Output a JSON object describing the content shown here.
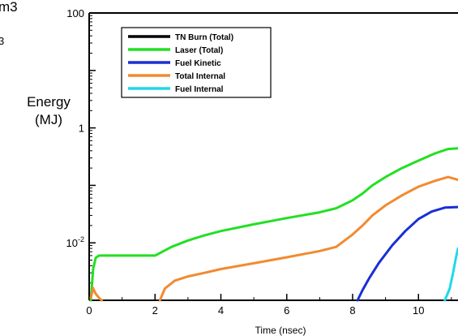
{
  "clipped_text": [
    "m3",
    "3"
  ],
  "chart_data": {
    "type": "line",
    "xlabel": "Time (nsec)",
    "ylabel_lines": [
      "Energy",
      "(MJ)"
    ],
    "y_scale": "log",
    "xlim": [
      0,
      11.2
    ],
    "ylim": [
      0.001,
      100
    ],
    "x_ticks": [
      0,
      2,
      4,
      6,
      8,
      10
    ],
    "x_tick_labels": [
      "0",
      "2",
      "4",
      "6",
      "8",
      "10"
    ],
    "y_tick_labels": [
      {
        "value": 100,
        "base": "100",
        "exp": ""
      },
      {
        "value": 1,
        "base": "1",
        "exp": ""
      },
      {
        "value": 0.01,
        "base": "10",
        "exp": "-2"
      }
    ],
    "legend_placement": "top-left",
    "series": [
      {
        "name": "TN Burn (Total)",
        "color": "#000000",
        "x": [],
        "y": []
      },
      {
        "name": "Laser (Total)",
        "color": "#22e022",
        "x": [
          0.05,
          0.12,
          0.2,
          0.3,
          2.0,
          2.5,
          3.0,
          3.5,
          4.0,
          5.0,
          6.0,
          7.0,
          7.5,
          8.0,
          8.3,
          8.6,
          9.0,
          9.5,
          10.0,
          10.5,
          10.9,
          11.2
        ],
        "y": [
          0.001,
          0.0035,
          0.0055,
          0.006,
          0.006,
          0.0085,
          0.011,
          0.0135,
          0.016,
          0.021,
          0.027,
          0.034,
          0.04,
          0.055,
          0.072,
          0.1,
          0.14,
          0.2,
          0.27,
          0.36,
          0.43,
          0.44
        ]
      },
      {
        "name": "Fuel Kinetic",
        "color": "#1a2fd6",
        "x": [
          8.15,
          8.3,
          8.5,
          8.8,
          9.2,
          9.6,
          10.0,
          10.4,
          10.8,
          11.2
        ],
        "y": [
          0.001,
          0.0015,
          0.0024,
          0.0045,
          0.009,
          0.016,
          0.026,
          0.035,
          0.041,
          0.042
        ]
      },
      {
        "name": "Total Internal",
        "color": "#f28a30",
        "x": [
          2.15,
          2.3,
          2.6,
          3.0,
          3.5,
          4.0,
          5.0,
          6.0,
          7.0,
          7.5,
          8.0,
          8.3,
          8.6,
          9.0,
          9.5,
          10.0,
          10.5,
          10.9,
          11.2
        ],
        "y": [
          0.001,
          0.0016,
          0.0022,
          0.0026,
          0.003,
          0.0035,
          0.0044,
          0.0056,
          0.0072,
          0.0085,
          0.014,
          0.02,
          0.03,
          0.045,
          0.067,
          0.095,
          0.12,
          0.14,
          0.125
        ]
      },
      {
        "name": "Fuel Internal",
        "color": "#20d8e8",
        "x": [
          10.8,
          10.95,
          11.05,
          11.15,
          11.2
        ],
        "y": [
          0.001,
          0.0016,
          0.003,
          0.006,
          0.008
        ]
      }
    ],
    "initial_orange_blip": {
      "x": [
        0.05,
        0.12,
        0.2,
        0.3,
        0.38
      ],
      "y": [
        0.0011,
        0.0016,
        0.0013,
        0.0011,
        0.001
      ]
    }
  }
}
